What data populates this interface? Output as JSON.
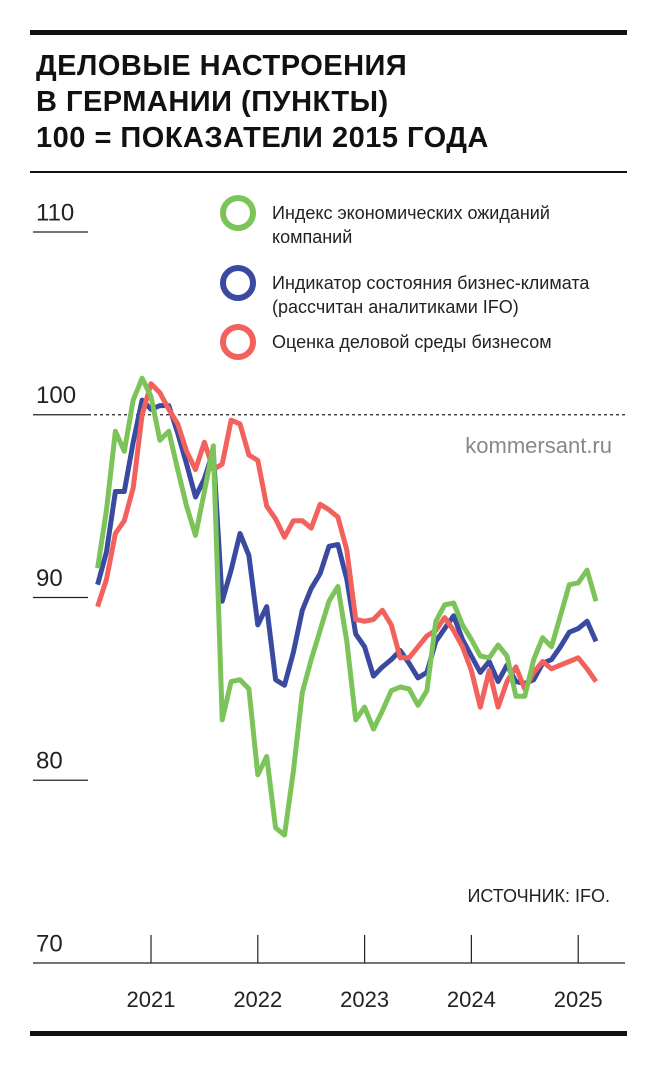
{
  "chart_data": {
    "type": "line",
    "title": [
      "ДЕЛОВЫЕ НАСТРОЕНИЯ",
      "В ГЕРМАНИИ (ПУНКТЫ)"
    ],
    "subtitle": "100 = ПОКАЗАТЕЛИ 2015 ГОДА",
    "watermark": "kommersant.ru",
    "source": "ИСТОЧНИК: IFO.",
    "categories": [
      null,
      null,
      null,
      null,
      null,
      null,
      "2021",
      null,
      null,
      null,
      null,
      null,
      null,
      null,
      null,
      null,
      null,
      null,
      "2022",
      null,
      null,
      null,
      null,
      null,
      null,
      null,
      null,
      null,
      null,
      null,
      "2023",
      null,
      null,
      null,
      null,
      null,
      null,
      null,
      null,
      null,
      null,
      null,
      "2024",
      null,
      null,
      null,
      null,
      null,
      null,
      null,
      null,
      null,
      null,
      null,
      "2025",
      null,
      null
    ],
    "ylim": [
      70,
      110
    ],
    "yticks": [
      70,
      80,
      90,
      100,
      110
    ],
    "reference_line": 100,
    "series": [
      {
        "name": "Индекс экономических ожиданий компаний",
        "color": "#7cc35a",
        "values": [
          91.6,
          94.8,
          99.1,
          98,
          100.8,
          102,
          101,
          98.6,
          99.1,
          97,
          95,
          93.4,
          95.8,
          98.3,
          83.3,
          85.4,
          85.5,
          85,
          80.3,
          81.3,
          77.4,
          77,
          80.5,
          84.8,
          86.6,
          88.2,
          89.8,
          90.6,
          87.6,
          83.3,
          84,
          82.8,
          83.8,
          84.9,
          85.1,
          85,
          84.1,
          84.9,
          88.7,
          89.6,
          89.7,
          88.5,
          87.7,
          86.8,
          86.7,
          87.4,
          86.8,
          84.6,
          84.6,
          86.6,
          87.8,
          87.3,
          89,
          90.7,
          90.8,
          91.5,
          89.8
        ]
      },
      {
        "name": "Индикатор состояния бизнес-климата (рассчитан аналитиками IFO)",
        "color": "#3a4aa0",
        "values": [
          90.7,
          92.5,
          95.8,
          95.8,
          98.5,
          100.8,
          100.3,
          100.5,
          100.5,
          99,
          97.3,
          95.5,
          96.5,
          98,
          89.8,
          91.5,
          93.5,
          92.3,
          88.5,
          89.5,
          85.5,
          85.2,
          87,
          89.3,
          90.5,
          91.3,
          92.8,
          92.9,
          91,
          88,
          87.3,
          85.7,
          86.2,
          86.6,
          87.1,
          86.4,
          85.6,
          85.9,
          87.6,
          88.3,
          89,
          87.7,
          86.8,
          85.9,
          86.5,
          85.4,
          86.3,
          85.4,
          85.3,
          85.5,
          86.4,
          86.6,
          87.3,
          88.1,
          88.3,
          88.7,
          87.6
        ]
      },
      {
        "name": "Оценка деловой среды бизнесом",
        "color": "#f2615d",
        "values": [
          89.5,
          91,
          93.5,
          94.2,
          96,
          100,
          101.7,
          101.2,
          100.3,
          99.5,
          98,
          97,
          98.5,
          97,
          97.3,
          99.7,
          99.5,
          97.8,
          97.5,
          95,
          94.3,
          93.3,
          94.2,
          94.2,
          93.8,
          95.1,
          94.8,
          94.4,
          92.6,
          88.8,
          88.7,
          88.8,
          89.3,
          88.5,
          86.7,
          86.7,
          87.3,
          87.9,
          88.2,
          88.9,
          88.2,
          87.3,
          86,
          84,
          86,
          84,
          85.4,
          86.2,
          85,
          85.9,
          86.5,
          86.1,
          86.3,
          86.5,
          86.7,
          86.1,
          85.4
        ]
      }
    ]
  }
}
